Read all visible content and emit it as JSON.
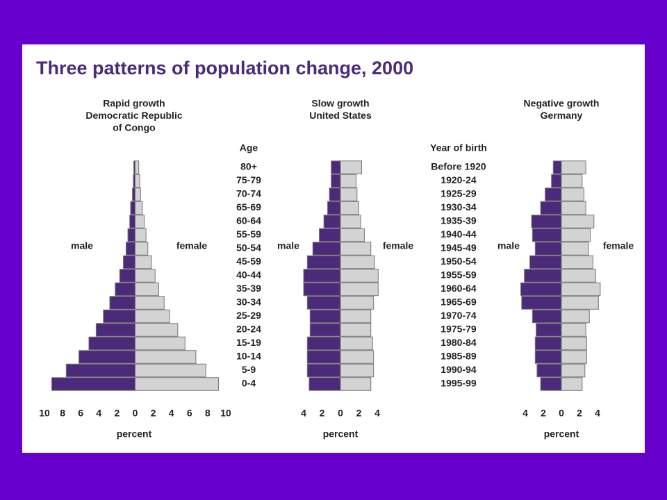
{
  "title": "Three patterns of population change, 2000",
  "chart_data": [
    {
      "type": "population-pyramid",
      "title": [
        "Rapid growth",
        "Democratic Republic",
        "of Congo"
      ],
      "category_label": "Age",
      "categories": [
        "80+",
        "75-79",
        "70-74",
        "65-69",
        "60-64",
        "55-59",
        "50-54",
        "45-59",
        "40-44",
        "35-39",
        "30-34",
        "25-29",
        "20-24",
        "15-19",
        "10-14",
        "5-9",
        "0-4"
      ],
      "x_label": "percent",
      "xlim": [
        -10,
        10
      ],
      "xticks": [
        {
          "value": -10,
          "label": "10"
        },
        {
          "value": -8,
          "label": "8"
        },
        {
          "value": -6,
          "label": "6"
        },
        {
          "value": -4,
          "label": "4"
        },
        {
          "value": -2,
          "label": "2"
        },
        0,
        2,
        4,
        6,
        8,
        10
      ],
      "series": [
        {
          "name": "male",
          "color": "#4b2a7a",
          "values": [
            0.15,
            0.2,
            0.3,
            0.5,
            0.6,
            0.8,
            1.0,
            1.3,
            1.7,
            2.2,
            2.8,
            3.5,
            4.3,
            5.1,
            6.2,
            7.6,
            9.2
          ]
        },
        {
          "name": "female",
          "color": "#d3d3d3",
          "values": [
            0.4,
            0.5,
            0.6,
            0.8,
            1.0,
            1.2,
            1.4,
            1.8,
            2.2,
            2.6,
            3.2,
            3.8,
            4.7,
            5.5,
            6.7,
            7.8,
            9.2
          ]
        }
      ]
    },
    {
      "type": "population-pyramid",
      "title": [
        "Slow growth",
        "United States"
      ],
      "x_label": "percent",
      "xlim": [
        -4,
        4
      ],
      "xticks": [
        {
          "value": -4,
          "label": "4"
        },
        {
          "value": -2,
          "label": "2"
        },
        0,
        2,
        4
      ],
      "series": [
        {
          "name": "male",
          "color": "#4b2a7a",
          "values": [
            1.0,
            1.0,
            1.2,
            1.4,
            1.8,
            2.3,
            3.0,
            3.6,
            4.0,
            4.0,
            3.6,
            3.3,
            3.3,
            3.6,
            3.6,
            3.6,
            3.4
          ]
        },
        {
          "name": "female",
          "color": "#d3d3d3",
          "values": [
            2.3,
            1.7,
            1.8,
            2.0,
            2.2,
            2.6,
            3.3,
            3.7,
            4.1,
            4.1,
            3.6,
            3.3,
            3.3,
            3.5,
            3.6,
            3.6,
            3.3
          ]
        }
      ]
    },
    {
      "type": "population-pyramid",
      "title": [
        "Negative growth",
        "Germany"
      ],
      "category_label": "Year of birth",
      "categories": [
        "Before 1920",
        "1920-24",
        "1925-29",
        "1930-34",
        "1935-39",
        "1940-44",
        "1945-49",
        "1950-54",
        "1955-59",
        "1960-64",
        "1965-69",
        "1970-74",
        "1975-79",
        "1980-84",
        "1985-89",
        "1990-94",
        "1995-99"
      ],
      "x_label": "percent",
      "xlim": [
        -4,
        4
      ],
      "xticks": [
        {
          "value": -4,
          "label": "4"
        },
        {
          "value": -2,
          "label": "2"
        },
        0,
        2,
        4
      ],
      "series": [
        {
          "name": "male",
          "color": "#4b2a7a",
          "values": [
            0.9,
            1.1,
            1.8,
            2.3,
            3.3,
            3.2,
            2.9,
            3.5,
            4.1,
            4.5,
            4.4,
            3.2,
            2.8,
            2.9,
            2.9,
            2.7,
            2.3
          ]
        },
        {
          "name": "female",
          "color": "#d3d3d3",
          "values": [
            2.7,
            2.3,
            2.5,
            2.7,
            3.6,
            3.2,
            3.0,
            3.5,
            3.8,
            4.3,
            4.1,
            3.1,
            2.7,
            2.8,
            2.8,
            2.6,
            2.3
          ]
        }
      ]
    }
  ]
}
